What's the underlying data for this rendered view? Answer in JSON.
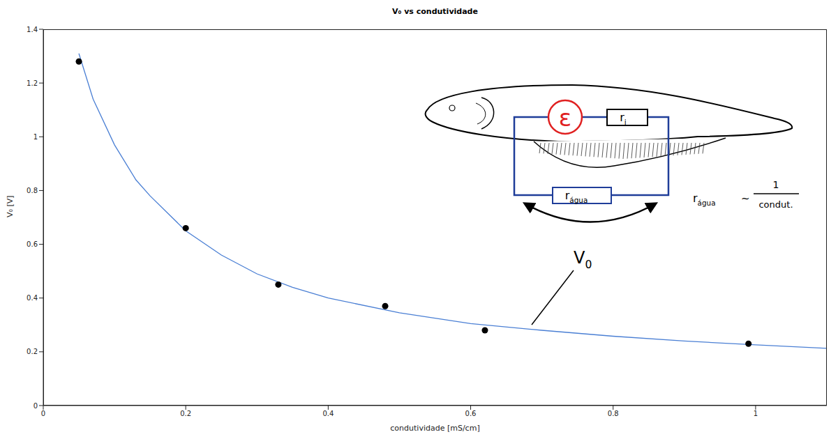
{
  "chart_data": {
    "type": "scatter",
    "title": "V₀ vs condutividade",
    "x_label": "condutividade [mS/cm]",
    "y_label": "V₀ [V]",
    "xlim": [
      0,
      1.1
    ],
    "ylim": [
      0,
      1.4
    ],
    "xticks": [
      0,
      0.2,
      0.4,
      0.6,
      0.8,
      1
    ],
    "yticks": [
      0,
      0.2,
      0.4,
      0.6,
      0.8,
      1,
      1.2,
      1.4
    ],
    "grid": false,
    "series": [
      {
        "type": "scatter",
        "color": "#000000",
        "marker": "circle",
        "x": [
          0.05,
          0.2,
          0.33,
          0.48,
          0.62,
          0.99
        ],
        "values": [
          1.28,
          0.66,
          0.45,
          0.37,
          0.28,
          0.23
        ]
      },
      {
        "type": "line",
        "color": "#4a7fd4",
        "line_style": "solid",
        "x": [
          0.05,
          0.07,
          0.1,
          0.13,
          0.15,
          0.2,
          0.25,
          0.3,
          0.35,
          0.4,
          0.5,
          0.6,
          0.7,
          0.8,
          0.9,
          1.0,
          1.1
        ],
        "values": [
          1.31,
          1.14,
          0.97,
          0.84,
          0.78,
          0.65,
          0.56,
          0.49,
          0.44,
          0.4,
          0.345,
          0.305,
          0.28,
          0.258,
          0.24,
          0.226,
          0.213
        ]
      }
    ],
    "annotations": {
      "emf": {
        "text": "ε"
      },
      "internal_resistance": {
        "text": "r",
        "sub": "i"
      },
      "water_resistance": {
        "text": "r",
        "sub": "água"
      },
      "voltage": {
        "text": "V",
        "sub": "0"
      },
      "relation": {
        "text": "r",
        "sub": "água",
        "symbol": "~",
        "numerator": "1",
        "denominator": "condut."
      }
    }
  }
}
